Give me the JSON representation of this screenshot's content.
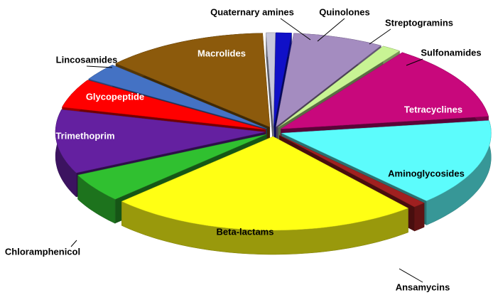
{
  "chart_data": {
    "type": "pie",
    "categories": [
      "Quaternary amines",
      "Quinolones",
      "Streptogramins",
      "Sulfonamides",
      "Tetracyclines",
      "Aminoglycosides",
      "Ansamycins",
      "Beta-lactams",
      "Chloramphenicol",
      "Trimethoprim",
      "Glycopeptide",
      "Lincosamides",
      "Macrolides"
    ],
    "values": [
      0.7,
      1.2,
      7,
      1.5,
      13,
      15,
      1,
      24,
      5,
      11,
      5,
      3,
      12.6
    ],
    "colors": [
      "#c8c8dc",
      "#1010c8",
      "#a48cc0",
      "#c8f494",
      "#c8087c",
      "#5cfcfc",
      "#a02020",
      "#ffff14",
      "#30c030",
      "#6420a0",
      "#ff0000",
      "#4472c4",
      "#8c5a0c"
    ]
  }
}
